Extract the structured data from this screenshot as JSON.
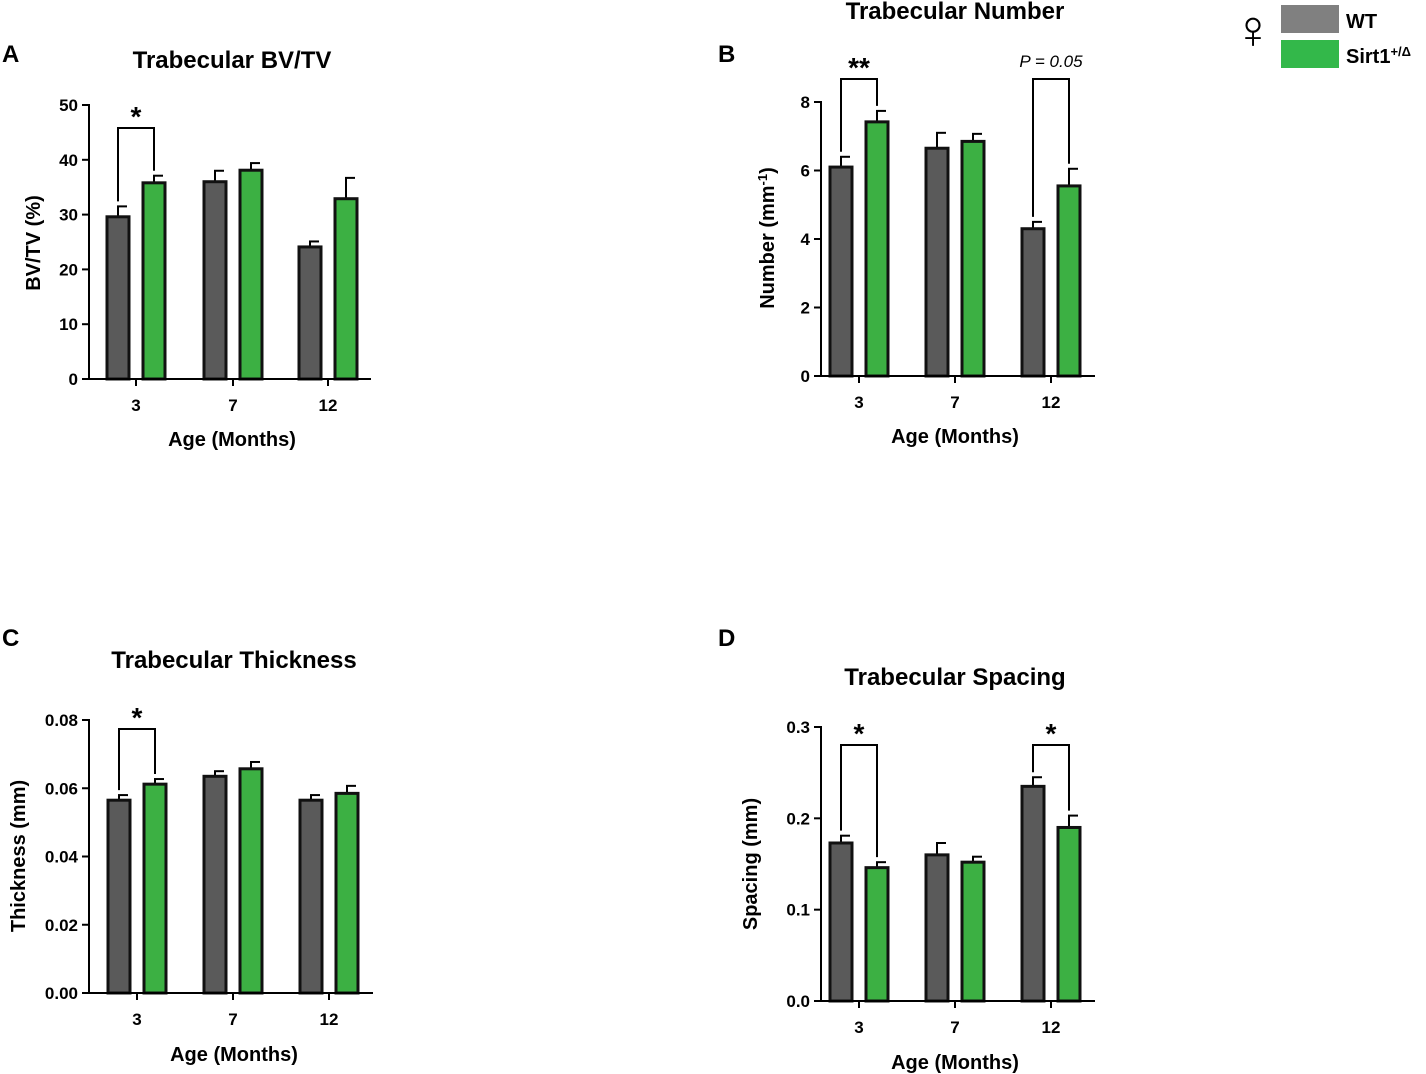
{
  "colors": {
    "wt": "#5a5a5a",
    "sirt1": "#3cb043",
    "axis": "#000000",
    "legend_wt": "#808080",
    "legend_sirt1": "#33b84a"
  },
  "legend": {
    "sex_symbol": "♀",
    "wt_label": "WT",
    "sirt1_label": "Sirt1",
    "sirt1_superscript": "+/Δ"
  },
  "chart_data": [
    {
      "panel": "A",
      "type": "bar",
      "title": "Trabecular BV/TV",
      "xlabel": "Age (Months)",
      "ylabel": "BV/TV (%)",
      "categories": [
        "3",
        "7",
        "12"
      ],
      "ylim": [
        0,
        50
      ],
      "yticks": [
        0,
        10,
        20,
        30,
        40,
        50
      ],
      "ytick_labels": [
        "0",
        "10",
        "20",
        "30",
        "40",
        "50"
      ],
      "series": [
        {
          "name": "WT",
          "values": [
            29.6,
            36.0,
            24.1
          ],
          "errors": [
            1.9,
            2.0,
            1.0
          ]
        },
        {
          "name": "Sirt1+/Δ",
          "values": [
            35.8,
            38.1,
            32.9
          ],
          "errors": [
            1.3,
            1.3,
            3.8
          ]
        }
      ],
      "significance": [
        {
          "category_index": 0,
          "label": "*"
        }
      ]
    },
    {
      "panel": "B",
      "type": "bar",
      "title": "Trabecular Number",
      "xlabel": "Age (Months)",
      "ylabel": "Number (mm⁻¹)",
      "categories": [
        "3",
        "7",
        "12"
      ],
      "ylim": [
        0,
        8
      ],
      "yticks": [
        0,
        2,
        4,
        6,
        8
      ],
      "ytick_labels": [
        "0",
        "2",
        "4",
        "6",
        "8"
      ],
      "series": [
        {
          "name": "WT",
          "values": [
            6.1,
            6.65,
            4.3
          ],
          "errors": [
            0.3,
            0.45,
            0.2
          ]
        },
        {
          "name": "Sirt1+/Δ",
          "values": [
            7.42,
            6.85,
            5.55
          ],
          "errors": [
            0.32,
            0.22,
            0.5
          ]
        }
      ],
      "significance": [
        {
          "category_index": 0,
          "label": "**"
        },
        {
          "category_index": 2,
          "label": "P = 0.05",
          "italic": true
        }
      ]
    },
    {
      "panel": "C",
      "type": "bar",
      "title": "Trabecular Thickness",
      "xlabel": "Age (Months)",
      "ylabel": "Thickness (mm)",
      "categories": [
        "3",
        "7",
        "12"
      ],
      "ylim": [
        0,
        0.08
      ],
      "yticks": [
        0,
        0.02,
        0.04,
        0.06,
        0.08
      ],
      "ytick_labels": [
        "0.00",
        "0.02",
        "0.04",
        "0.06",
        "0.08"
      ],
      "series": [
        {
          "name": "WT",
          "values": [
            0.0565,
            0.0635,
            0.0565
          ],
          "errors": [
            0.0015,
            0.0015,
            0.0015
          ]
        },
        {
          "name": "Sirt1+/Δ",
          "values": [
            0.0612,
            0.0657,
            0.0585
          ],
          "errors": [
            0.0015,
            0.002,
            0.0022
          ]
        }
      ],
      "significance": [
        {
          "category_index": 0,
          "label": "*"
        }
      ]
    },
    {
      "panel": "D",
      "type": "bar",
      "title": "Trabecular Spacing",
      "xlabel": "Age (Months)",
      "ylabel": "Spacing (mm)",
      "categories": [
        "3",
        "7",
        "12"
      ],
      "ylim": [
        0,
        0.3
      ],
      "yticks": [
        0,
        0.1,
        0.2,
        0.3
      ],
      "ytick_labels": [
        "0.0",
        "0.1",
        "0.2",
        "0.3"
      ],
      "series": [
        {
          "name": "WT",
          "values": [
            0.173,
            0.16,
            0.235
          ],
          "errors": [
            0.008,
            0.013,
            0.01
          ]
        },
        {
          "name": "Sirt1+/Δ",
          "values": [
            0.146,
            0.152,
            0.19
          ],
          "errors": [
            0.006,
            0.006,
            0.013
          ]
        }
      ],
      "significance": [
        {
          "category_index": 0,
          "label": "*"
        },
        {
          "category_index": 2,
          "label": "*"
        }
      ]
    }
  ]
}
